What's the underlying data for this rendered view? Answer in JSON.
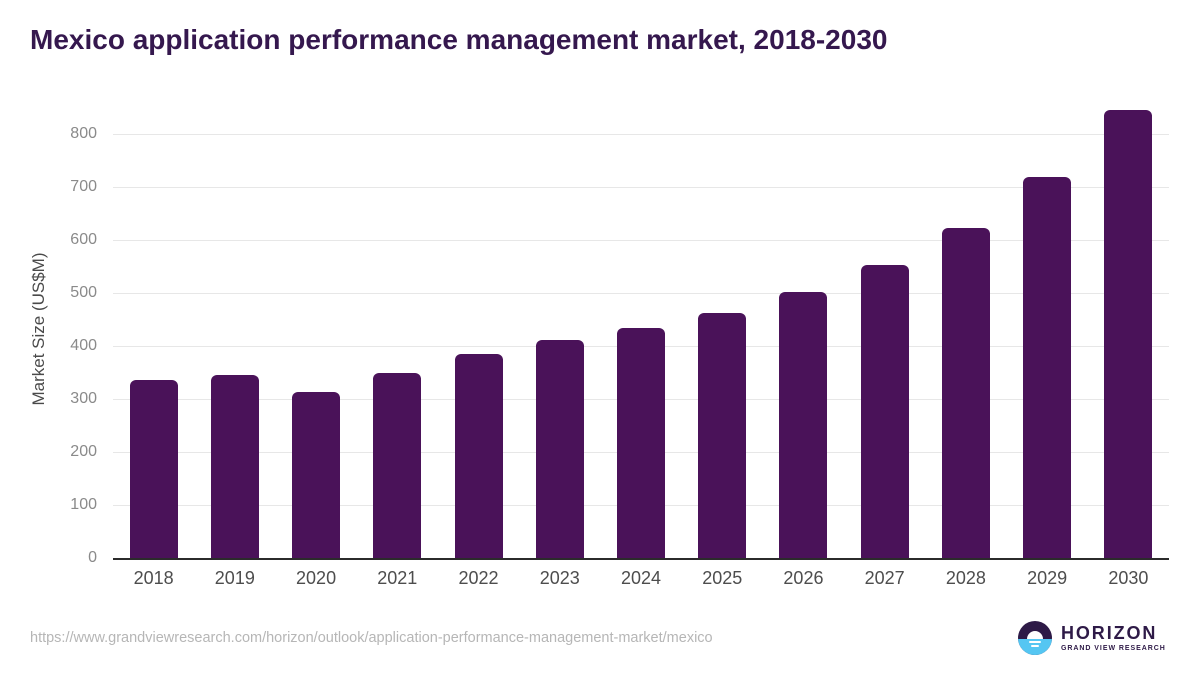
{
  "title": "Mexico application performance management market, 2018-2030",
  "source_url": "https://www.grandviewresearch.com/horizon/outlook/application-performance-management-market/mexico",
  "logo": {
    "name": "HORIZON",
    "subtitle": "GRAND VIEW RESEARCH"
  },
  "chart_data": {
    "type": "bar",
    "title": "Mexico application performance management market, 2018-2030",
    "categories": [
      "2018",
      "2019",
      "2020",
      "2021",
      "2022",
      "2023",
      "2024",
      "2025",
      "2026",
      "2027",
      "2028",
      "2029",
      "2030"
    ],
    "values": [
      335,
      346,
      313,
      349,
      385,
      412,
      434,
      462,
      502,
      553,
      623,
      718,
      845
    ],
    "xlabel": "",
    "ylabel": "Market Size (US$M)",
    "yticks": [
      0,
      100,
      200,
      300,
      400,
      500,
      600,
      700,
      800
    ],
    "ylim": [
      0,
      864
    ],
    "grid": true,
    "legend": false,
    "bar_color": "#4a1259"
  },
  "colors": {
    "title": "#35184e",
    "bar": "#4a1259",
    "grid": "#e7e7e7",
    "axis_line": "#2b2b2b",
    "y_tick_label": "#8a8a8a",
    "x_tick_label": "#4d4d4d",
    "url_text": "#b6b6b6",
    "logo_purple": "#2e1a47",
    "logo_blue": "#55c6f2"
  }
}
